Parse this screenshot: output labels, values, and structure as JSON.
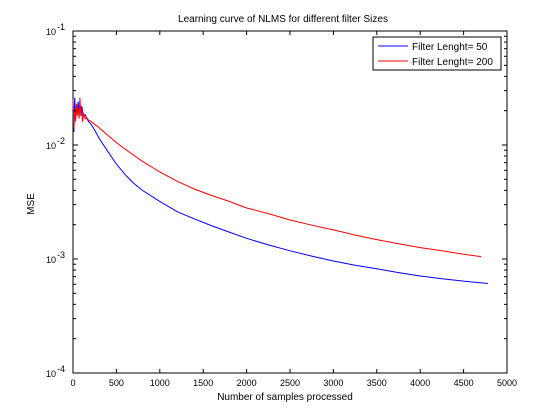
{
  "chart_data": {
    "type": "line",
    "title": "Learning curve  of NLMS for different filter Sizes",
    "xlabel": "Number of samples processed",
    "ylabel": "MSE",
    "xlim": [
      0,
      5000
    ],
    "ylim": [
      0.0001,
      0.1
    ],
    "yscale": "log",
    "grid": false,
    "legend_position": "top-right",
    "x_ticks": [
      "0",
      "500",
      "1000",
      "1500",
      "2000",
      "2500",
      "3000",
      "3500",
      "4000",
      "4500",
      "5000"
    ],
    "x_tick_values": [
      0,
      500,
      1000,
      1500,
      2000,
      2500,
      3000,
      3500,
      4000,
      4500,
      5000
    ],
    "y_ticks": [
      {
        "base": "10",
        "exp": "-4",
        "value": 0.0001
      },
      {
        "base": "10",
        "exp": "-3",
        "value": 0.001
      },
      {
        "base": "10",
        "exp": "-2",
        "value": 0.01
      },
      {
        "base": "10",
        "exp": "-1",
        "value": 0.1
      }
    ],
    "series": [
      {
        "name": "Filter Lenght= 50",
        "color": "#0000ff",
        "x": [
          0,
          10,
          20,
          30,
          40,
          50,
          60,
          70,
          80,
          90,
          100,
          120,
          140,
          160,
          180,
          200,
          250,
          300,
          400,
          500,
          600,
          700,
          800,
          1000,
          1200,
          1400,
          1600,
          1800,
          2000,
          2250,
          2500,
          2750,
          3000,
          3250,
          3500,
          3750,
          4000,
          4250,
          4500,
          4780
        ],
        "y": [
          0.024,
          0.013,
          0.026,
          0.017,
          0.022,
          0.02,
          0.024,
          0.018,
          0.023,
          0.019,
          0.022,
          0.018,
          0.0185,
          0.017,
          0.016,
          0.0155,
          0.0135,
          0.0115,
          0.0088,
          0.0068,
          0.0055,
          0.0046,
          0.004,
          0.0032,
          0.0026,
          0.00225,
          0.00195,
          0.00172,
          0.00152,
          0.00133,
          0.00118,
          0.00106,
          0.00096,
          0.00088,
          0.00082,
          0.00076,
          0.00071,
          0.00067,
          0.00064,
          0.00061
        ]
      },
      {
        "name": "Filter Lenght= 200",
        "color": "#ff0000",
        "x": [
          0,
          10,
          20,
          30,
          40,
          50,
          60,
          70,
          80,
          90,
          100,
          110,
          120,
          140,
          160,
          180,
          200,
          250,
          300,
          400,
          500,
          600,
          700,
          800,
          1000,
          1200,
          1400,
          1600,
          1800,
          2000,
          2250,
          2500,
          2750,
          3000,
          3250,
          3500,
          3750,
          4000,
          4250,
          4500,
          4700
        ],
        "y": [
          0.025,
          0.014,
          0.021,
          0.016,
          0.023,
          0.018,
          0.021,
          0.017,
          0.026,
          0.018,
          0.02,
          0.016,
          0.019,
          0.017,
          0.0172,
          0.0165,
          0.0162,
          0.0152,
          0.0142,
          0.0122,
          0.0105,
          0.0092,
          0.0081,
          0.0072,
          0.0058,
          0.0048,
          0.0041,
          0.0036,
          0.0032,
          0.0028,
          0.0025,
          0.0022,
          0.00198,
          0.0018,
          0.00162,
          0.00148,
          0.00136,
          0.00126,
          0.00118,
          0.0011,
          0.00105
        ]
      }
    ]
  }
}
